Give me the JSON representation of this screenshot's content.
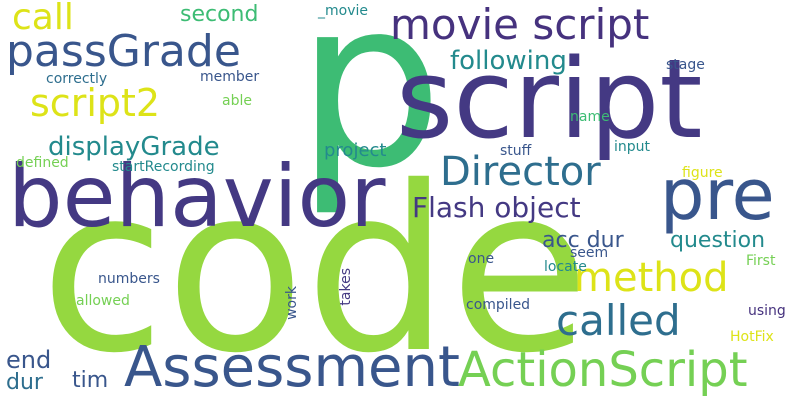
{
  "colors": {
    "background": "#ffffff",
    "lime": "#95d840",
    "green": "#3dbc74",
    "purple": "#443983",
    "navy": "#39568c",
    "slate": "#2e6e8e",
    "teal": "#238a8d",
    "yellow": "#dde318",
    "light_green": "#75d054",
    "dark_purple": "#46327e"
  },
  "words": [
    {
      "id": "code",
      "text": "code"
    },
    {
      "id": "p",
      "text": "p"
    },
    {
      "id": "script",
      "text": "script"
    },
    {
      "id": "behavior",
      "text": "behavior"
    },
    {
      "id": "pre",
      "text": "pre"
    },
    {
      "id": "assessment",
      "text": "Assessment"
    },
    {
      "id": "actionscript",
      "text": "ActionScript"
    },
    {
      "id": "movie-script",
      "text": "movie script"
    },
    {
      "id": "passgrade",
      "text": "passGrade"
    },
    {
      "id": "director",
      "text": "Director"
    },
    {
      "id": "method",
      "text": "method"
    },
    {
      "id": "called",
      "text": "called"
    },
    {
      "id": "script2",
      "text": "script2"
    },
    {
      "id": "call",
      "text": "call"
    },
    {
      "id": "flash-object",
      "text": "Flash object"
    },
    {
      "id": "displaygrade",
      "text": "displayGrade"
    },
    {
      "id": "following",
      "text": "following"
    },
    {
      "id": "acc-dur",
      "text": "acc dur"
    },
    {
      "id": "question",
      "text": "question"
    },
    {
      "id": "end",
      "text": "end"
    },
    {
      "id": "dur",
      "text": "dur"
    },
    {
      "id": "tim",
      "text": "tim"
    },
    {
      "id": "second",
      "text": "second"
    },
    {
      "id": "project",
      "text": "project"
    },
    {
      "id": "movie-underscore",
      "text": "_movie"
    },
    {
      "id": "correctly",
      "text": "correctly"
    },
    {
      "id": "member",
      "text": "member"
    },
    {
      "id": "able",
      "text": "able"
    },
    {
      "id": "name",
      "text": "name"
    },
    {
      "id": "stage",
      "text": "stage"
    },
    {
      "id": "input",
      "text": "input"
    },
    {
      "id": "stuff",
      "text": "stuff"
    },
    {
      "id": "defined",
      "text": "defined"
    },
    {
      "id": "startrecording",
      "text": "startRecording"
    },
    {
      "id": "figure",
      "text": "figure"
    },
    {
      "id": "numbers",
      "text": "numbers"
    },
    {
      "id": "allowed",
      "text": "allowed"
    },
    {
      "id": "work",
      "text": "work"
    },
    {
      "id": "takes",
      "text": "takes"
    },
    {
      "id": "one",
      "text": "one"
    },
    {
      "id": "seem",
      "text": "seem"
    },
    {
      "id": "locate",
      "text": "locate"
    },
    {
      "id": "first",
      "text": "First"
    },
    {
      "id": "compiled",
      "text": "compiled"
    },
    {
      "id": "using",
      "text": "using"
    },
    {
      "id": "hotfix",
      "text": "HotFix"
    }
  ]
}
